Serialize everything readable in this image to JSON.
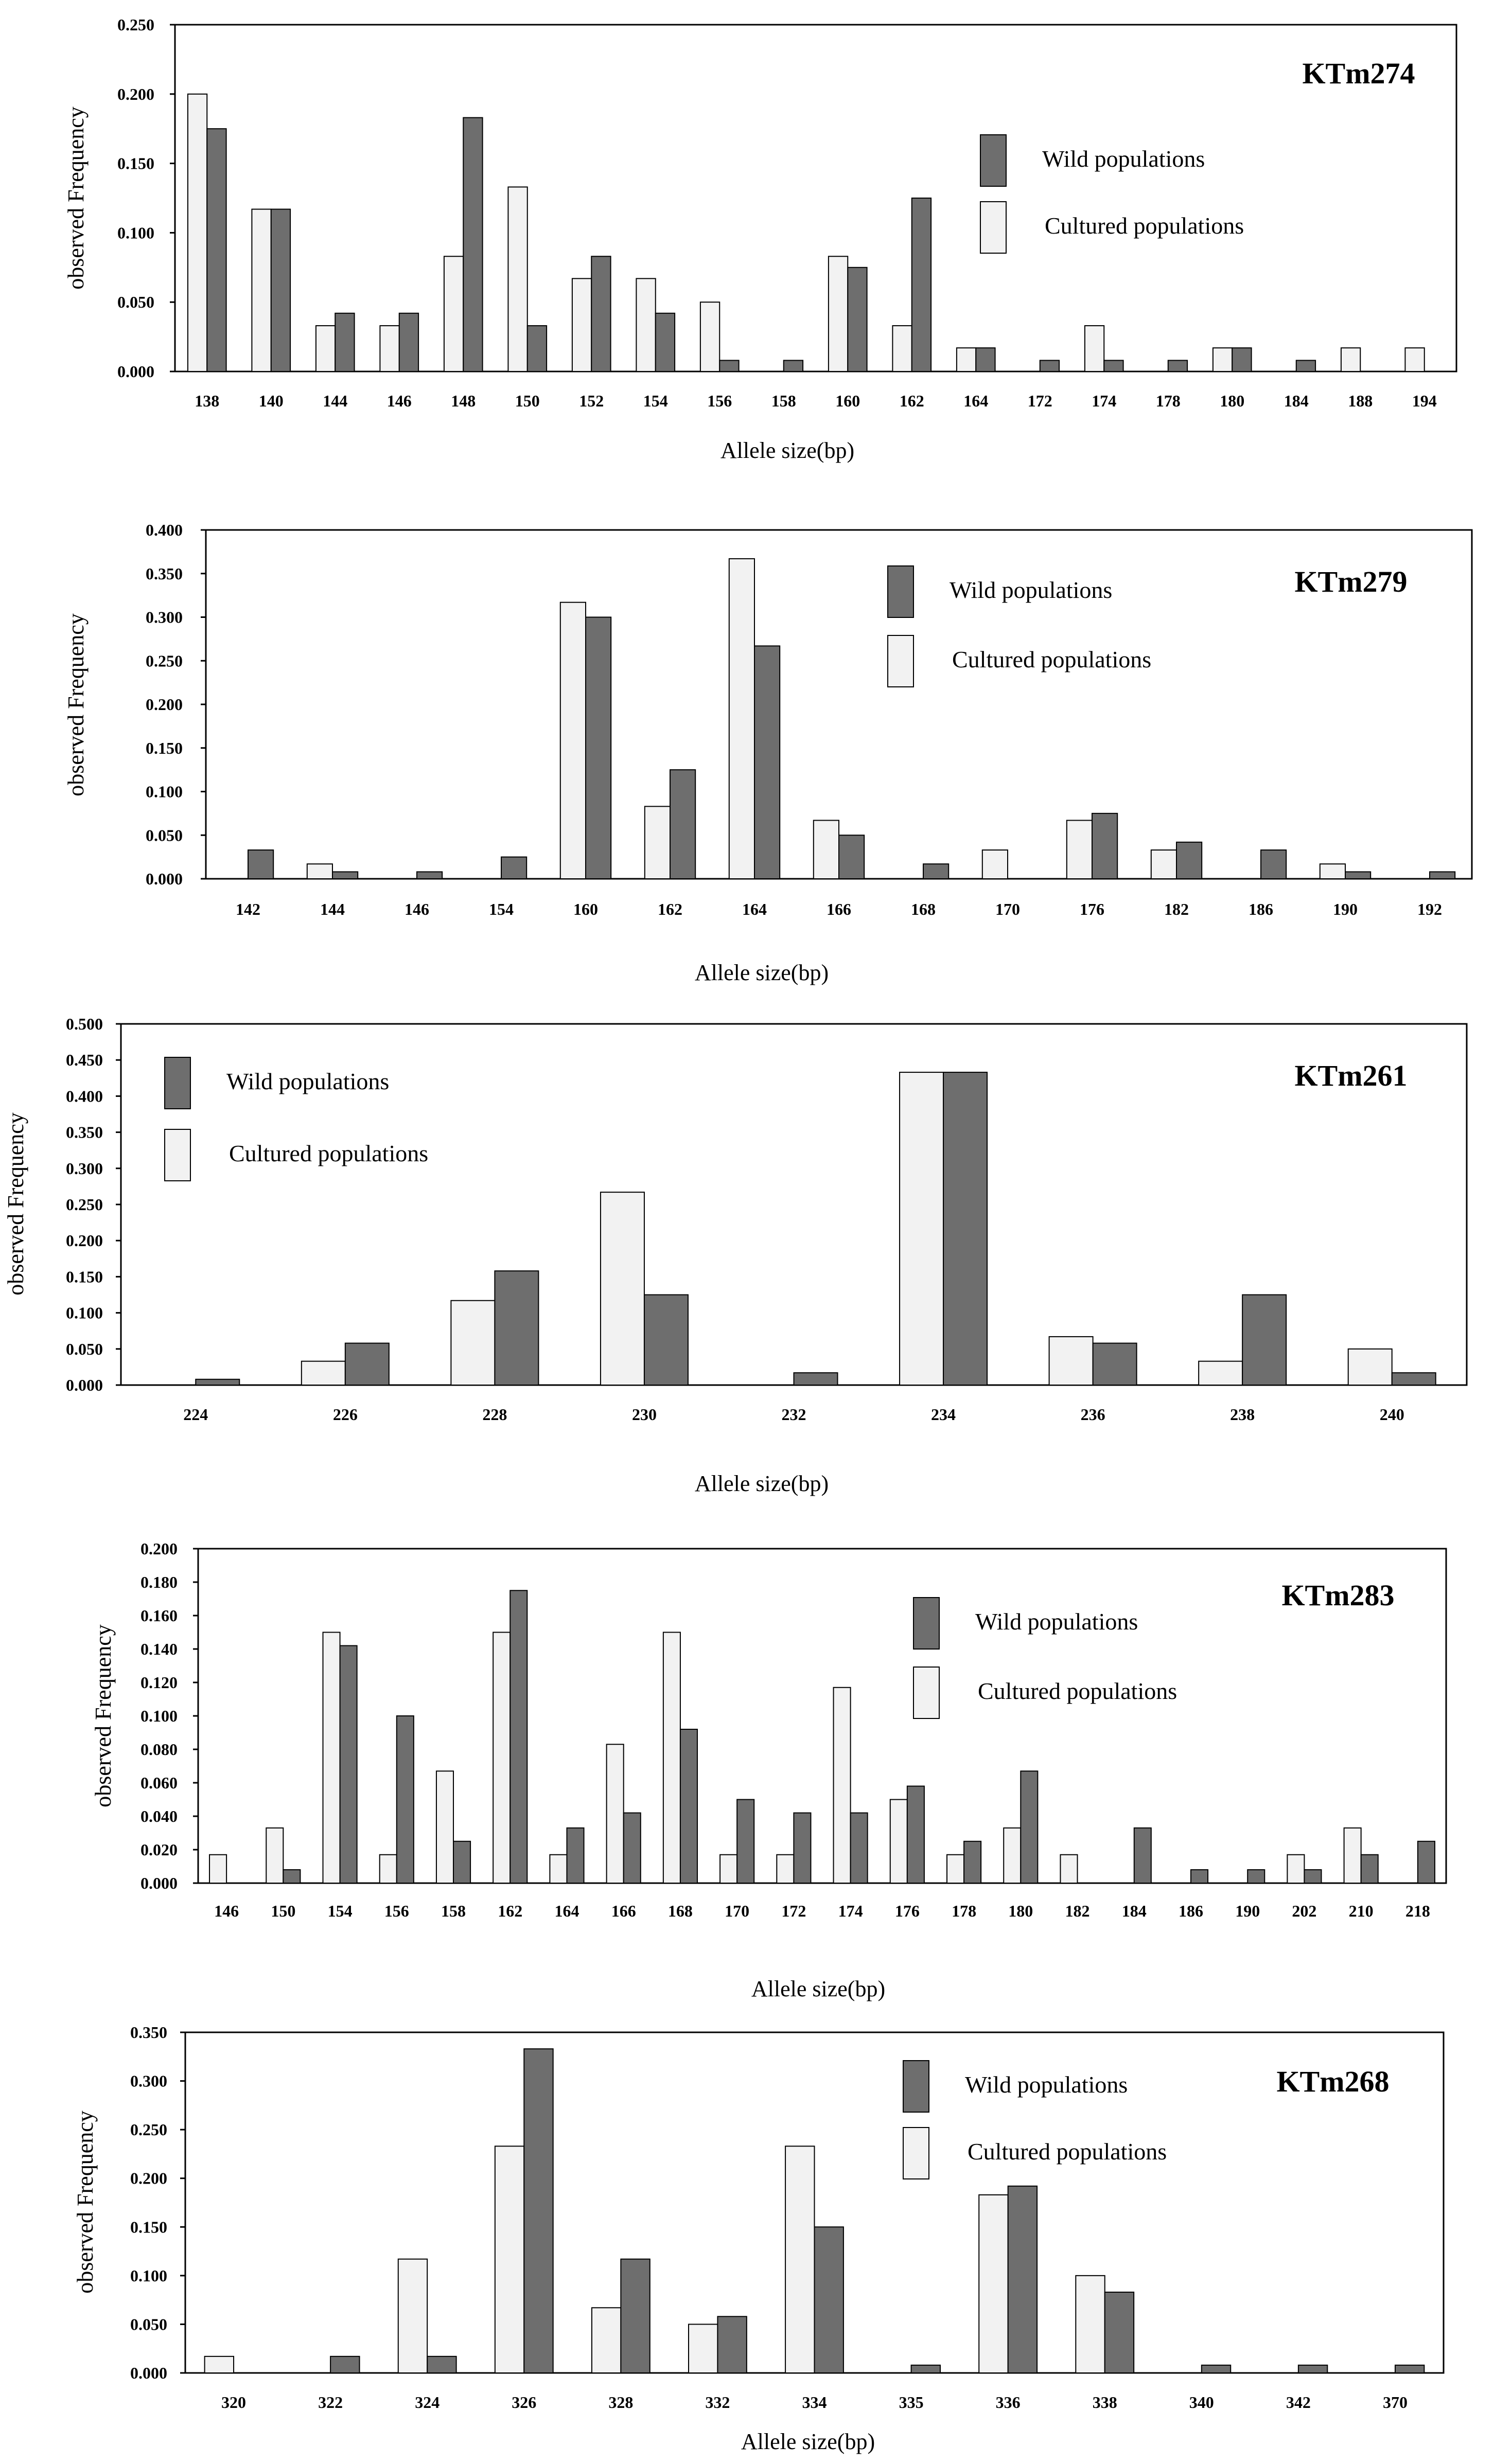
{
  "colors": {
    "wild": "#6e6e6e",
    "cultured": "#f2f2f2",
    "outline": "#000000"
  },
  "chart_data": [
    {
      "type": "bar",
      "title": "KTm274",
      "xlabel": "Allele size(bp)",
      "ylabel": "observed Frequency",
      "ylim": [
        0,
        0.25
      ],
      "yticks": [
        "0.000",
        "0.050",
        "0.100",
        "0.150",
        "0.200",
        "0.250"
      ],
      "legend_position": "top-right",
      "categories": [
        "138",
        "140",
        "144",
        "146",
        "148",
        "150",
        "152",
        "154",
        "156",
        "158",
        "160",
        "162",
        "164",
        "172",
        "174",
        "178",
        "180",
        "184",
        "188",
        "194"
      ],
      "series": [
        {
          "name": "Cultured populations",
          "values": [
            0.2,
            0.117,
            0.033,
            0.033,
            0.083,
            0.133,
            0.067,
            0.067,
            0.05,
            0,
            0.083,
            0.033,
            0.017,
            0,
            0.033,
            0,
            0.017,
            0,
            0.017,
            0.017
          ]
        },
        {
          "name": "Wild populations",
          "values": [
            0.175,
            0.117,
            0.042,
            0.042,
            0.183,
            0.033,
            0.083,
            0.042,
            0.008,
            0.008,
            0.075,
            0.125,
            0.017,
            0.008,
            0.008,
            0.008,
            0.017,
            0.008,
            0,
            0
          ]
        }
      ]
    },
    {
      "type": "bar",
      "title": "KTm279",
      "xlabel": "Allele size(bp)",
      "ylabel": "observed Frequency",
      "ylim": [
        0,
        0.4
      ],
      "yticks": [
        "0.000",
        "0.050",
        "0.100",
        "0.150",
        "0.200",
        "0.250",
        "0.300",
        "0.350",
        "0.400"
      ],
      "legend_position": "top-center",
      "categories": [
        "142",
        "144",
        "146",
        "154",
        "160",
        "162",
        "164",
        "166",
        "168",
        "170",
        "176",
        "182",
        "186",
        "190",
        "192"
      ],
      "series": [
        {
          "name": "Cultured populations",
          "values": [
            0,
            0.017,
            0,
            0,
            0.317,
            0.083,
            0.367,
            0.067,
            0,
            0.033,
            0.067,
            0.033,
            0,
            0.017,
            0
          ]
        },
        {
          "name": "Wild populations",
          "values": [
            0.033,
            0.008,
            0.008,
            0.025,
            0.3,
            0.125,
            0.267,
            0.05,
            0.017,
            0,
            0.075,
            0.042,
            0.033,
            0.008,
            0.008
          ]
        }
      ]
    },
    {
      "type": "bar",
      "title": "KTm261",
      "xlabel": "Allele size(bp)",
      "ylabel": "observed Frequency",
      "ylim": [
        0,
        0.5
      ],
      "yticks": [
        "0.000",
        "0.050",
        "0.100",
        "0.150",
        "0.200",
        "0.250",
        "0.300",
        "0.350",
        "0.400",
        "0.450",
        "0.500"
      ],
      "legend_position": "top-left",
      "categories": [
        "224",
        "226",
        "228",
        "230",
        "232",
        "234",
        "236",
        "238",
        "240"
      ],
      "series": [
        {
          "name": "Cultured populations",
          "values": [
            0,
            0.033,
            0.117,
            0.267,
            0,
            0.433,
            0.067,
            0.033,
            0.05
          ]
        },
        {
          "name": "Wild populations",
          "values": [
            0.008,
            0.058,
            0.158,
            0.125,
            0.017,
            0.433,
            0.058,
            0.125,
            0.017
          ]
        }
      ]
    },
    {
      "type": "bar",
      "title": "KTm283",
      "xlabel": "Allele size(bp)",
      "ylabel": "observed Frequency",
      "ylim": [
        0,
        0.2
      ],
      "yticks": [
        "0.000",
        "0.020",
        "0.040",
        "0.060",
        "0.080",
        "0.100",
        "0.120",
        "0.140",
        "0.160",
        "0.180",
        "0.200"
      ],
      "legend_position": "top-center",
      "categories": [
        "146",
        "150",
        "154",
        "156",
        "158",
        "162",
        "164",
        "166",
        "168",
        "170",
        "172",
        "174",
        "176",
        "178",
        "180",
        "182",
        "184",
        "186",
        "190",
        "202",
        "210",
        "218"
      ],
      "series": [
        {
          "name": "Cultured populations",
          "values": [
            0.017,
            0.033,
            0.15,
            0.017,
            0.067,
            0.15,
            0.017,
            0.083,
            0.15,
            0.017,
            0.017,
            0.117,
            0.05,
            0.017,
            0.033,
            0.017,
            0,
            0,
            0,
            0.017,
            0.033,
            0
          ]
        },
        {
          "name": "Wild populations",
          "values": [
            0,
            0.008,
            0.142,
            0.1,
            0.025,
            0.175,
            0.033,
            0.042,
            0.092,
            0.05,
            0.042,
            0.042,
            0.058,
            0.025,
            0.067,
            0,
            0.033,
            0.008,
            0.008,
            0.008,
            0.017,
            0.025
          ]
        }
      ]
    },
    {
      "type": "bar",
      "title": "KTm268",
      "xlabel": "Allele size(bp)",
      "ylabel": "observed Frequency",
      "ylim": [
        0,
        0.35
      ],
      "yticks": [
        "0.000",
        "0.050",
        "0.100",
        "0.150",
        "0.200",
        "0.250",
        "0.300",
        "0.350"
      ],
      "legend_position": "top-center",
      "categories": [
        "320",
        "322",
        "324",
        "326",
        "328",
        "332",
        "334",
        "335",
        "336",
        "338",
        "340",
        "342",
        "370"
      ],
      "series": [
        {
          "name": "Cultured populations",
          "values": [
            0.017,
            0,
            0.117,
            0.233,
            0.067,
            0.05,
            0.233,
            0,
            0.183,
            0.1,
            0,
            0,
            0
          ]
        },
        {
          "name": "Wild populations",
          "values": [
            0,
            0.017,
            0.017,
            0.333,
            0.117,
            0.058,
            0.15,
            0.008,
            0.192,
            0.083,
            0.008,
            0.008,
            0.008
          ]
        }
      ]
    }
  ]
}
